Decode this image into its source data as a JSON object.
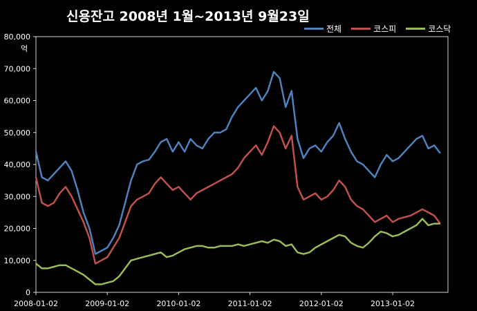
{
  "chart_data": {
    "type": "line",
    "title": "신용잔고  2008년 1월~2013년 9월23일",
    "y_unit": "억",
    "ylim": [
      0,
      80000
    ],
    "y_ticks": [
      "0",
      "10,000",
      "20,000",
      "30,000",
      "40,000",
      "50,000",
      "60,000",
      "70,000",
      "80,000"
    ],
    "x_ticks": [
      "2008-01-02",
      "2009-01-02",
      "2010-01-02",
      "2011-01-02",
      "2012-01-02",
      "2013-01-02"
    ],
    "grid": false,
    "legend_position": "top-right",
    "x": [
      "2008-01",
      "2008-02",
      "2008-03",
      "2008-04",
      "2008-05",
      "2008-06",
      "2008-07",
      "2008-08",
      "2008-09",
      "2008-10",
      "2008-11",
      "2008-12",
      "2009-01",
      "2009-02",
      "2009-03",
      "2009-04",
      "2009-05",
      "2009-06",
      "2009-07",
      "2009-08",
      "2009-09",
      "2009-10",
      "2009-11",
      "2009-12",
      "2010-01",
      "2010-02",
      "2010-03",
      "2010-04",
      "2010-05",
      "2010-06",
      "2010-07",
      "2010-08",
      "2010-09",
      "2010-10",
      "2010-11",
      "2010-12",
      "2011-01",
      "2011-02",
      "2011-03",
      "2011-04",
      "2011-05",
      "2011-06",
      "2011-07",
      "2011-08",
      "2011-09",
      "2011-10",
      "2011-11",
      "2011-12",
      "2012-01",
      "2012-02",
      "2012-03",
      "2012-04",
      "2012-05",
      "2012-06",
      "2012-07",
      "2012-08",
      "2012-09",
      "2012-10",
      "2012-11",
      "2012-12",
      "2013-01",
      "2013-02",
      "2013-03",
      "2013-04",
      "2013-05",
      "2013-06",
      "2013-07",
      "2013-08",
      "2013-09"
    ],
    "series": [
      {
        "name": "전체",
        "color": "#4F81BD",
        "values": [
          44000,
          36000,
          35000,
          37000,
          39000,
          41000,
          38000,
          32000,
          25000,
          20000,
          12000,
          13000,
          14000,
          17000,
          21000,
          28000,
          35000,
          40000,
          41000,
          41500,
          44000,
          47000,
          48000,
          44000,
          47000,
          44000,
          48000,
          46000,
          45000,
          48000,
          50000,
          50000,
          51000,
          55000,
          58000,
          60000,
          62000,
          64000,
          60000,
          63000,
          69000,
          67000,
          58000,
          63000,
          48000,
          42000,
          45000,
          46000,
          44000,
          47000,
          49000,
          53000,
          48000,
          44000,
          41000,
          40000,
          38000,
          36000,
          40000,
          43000,
          41000,
          42000,
          44000,
          46000,
          48000,
          49000,
          45000,
          46000,
          43500
        ]
      },
      {
        "name": "코스피",
        "color": "#C0504D",
        "values": [
          36000,
          28000,
          27000,
          28000,
          31000,
          33000,
          30000,
          26000,
          22000,
          17000,
          9000,
          10000,
          11000,
          14000,
          17000,
          22000,
          27000,
          29000,
          30000,
          31000,
          34000,
          36000,
          34000,
          32000,
          33000,
          31000,
          29000,
          31000,
          32000,
          33000,
          34000,
          35000,
          36000,
          37000,
          39000,
          42000,
          44000,
          46000,
          43000,
          47000,
          52000,
          50000,
          45000,
          49000,
          33000,
          29000,
          30000,
          31000,
          29000,
          30000,
          32000,
          35000,
          33000,
          29000,
          27000,
          26000,
          24000,
          22000,
          23000,
          24000,
          22000,
          23000,
          23500,
          24000,
          25000,
          26000,
          25000,
          24000,
          21500
        ]
      },
      {
        "name": "코스닥",
        "color": "#9BBB59",
        "values": [
          9000,
          7500,
          7500,
          8000,
          8500,
          8500,
          7500,
          6500,
          5500,
          4000,
          2500,
          2500,
          3000,
          3500,
          5000,
          7500,
          10000,
          10500,
          11000,
          11500,
          12000,
          12500,
          11000,
          11500,
          12500,
          13500,
          14000,
          14500,
          14500,
          14000,
          14000,
          14500,
          14500,
          14500,
          15000,
          14500,
          15000,
          15500,
          16000,
          15500,
          16500,
          16000,
          14500,
          15000,
          12500,
          12000,
          12500,
          14000,
          15000,
          16000,
          17000,
          18000,
          17500,
          15500,
          14500,
          14000,
          15500,
          17500,
          19000,
          18500,
          17500,
          18000,
          19000,
          20000,
          21000,
          23000,
          21000,
          21500,
          21500
        ]
      }
    ]
  }
}
